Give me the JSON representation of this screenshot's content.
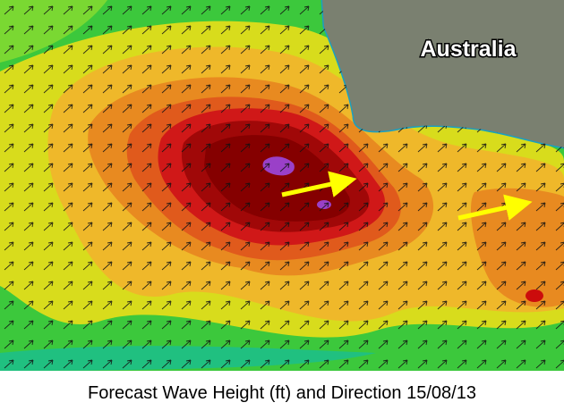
{
  "map": {
    "label": "Australia"
  },
  "caption": "Forecast Wave Height (ft) and Direction 15/08/13"
}
